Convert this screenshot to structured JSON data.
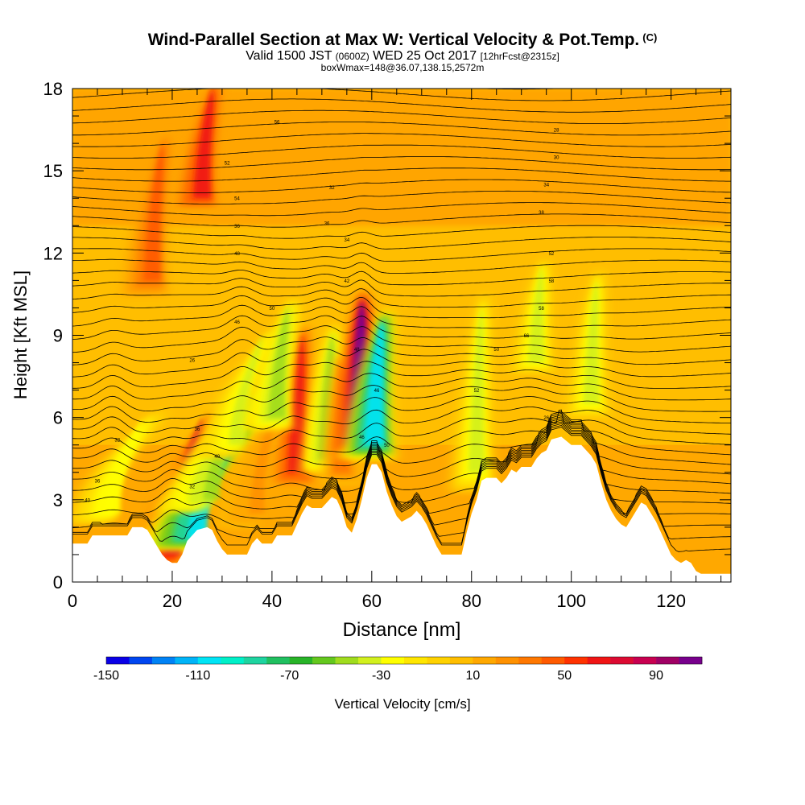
{
  "chart_data": {
    "type": "heatmap",
    "title": "Wind-Parallel Section at Max W: Vertical Velocity & Pot.Temp.",
    "title_suffix": "(C)",
    "subtitle_main": "Valid 1500 JST",
    "subtitle_utc": "(0600Z)",
    "subtitle_date": "WED 25 Oct 2017",
    "subtitle_fcst": "[12hrFcst@2315z]",
    "subtitle_box": "boxWmax=148@36.07,138.15,2572m",
    "xlabel": "Distance [nm]",
    "ylabel": "Height [Kft MSL]",
    "xlim": [
      0,
      132
    ],
    "ylim": [
      0,
      18
    ],
    "x_ticks": [
      "0",
      "20",
      "40",
      "60",
      "80",
      "100",
      "120"
    ],
    "y_ticks": [
      "0",
      "3",
      "6",
      "9",
      "12",
      "15",
      "18"
    ],
    "colorbar": {
      "label": "Vertical Velocity [cm/s]",
      "range": [
        -150,
        110
      ],
      "step": 10,
      "tick_labels": [
        "-150",
        "-110",
        "-70",
        "-30",
        "10",
        "50",
        "90"
      ],
      "colors": [
        "#0a00e6",
        "#0046f0",
        "#0082f5",
        "#00b4f8",
        "#00e4f5",
        "#00f0c8",
        "#1ed4a0",
        "#20c060",
        "#28b428",
        "#64c81e",
        "#a0dc1e",
        "#d2f01e",
        "#ffff00",
        "#ffe600",
        "#ffd200",
        "#ffbe00",
        "#ffa800",
        "#ff9100",
        "#ff7800",
        "#ff5a00",
        "#ff3200",
        "#f01414",
        "#dc0a32",
        "#c80050",
        "#a00064",
        "#78008c"
      ]
    },
    "theta_labels": [
      "40",
      "36",
      "32",
      "26",
      "32",
      "36",
      "40",
      "46",
      "56",
      "36",
      "52",
      "54",
      "48",
      "50",
      "36",
      "32",
      "34",
      "42",
      "48",
      "46",
      "46",
      "50",
      "52",
      "50",
      "66",
      "58",
      "58",
      "52",
      "38",
      "34",
      "30",
      "28",
      "26"
    ],
    "terrain": [
      [
        0,
        1.4
      ],
      [
        3,
        1.4
      ],
      [
        4,
        1.7
      ],
      [
        11,
        1.7
      ],
      [
        12,
        2.0
      ],
      [
        14,
        2.0
      ],
      [
        15,
        1.9
      ],
      [
        16,
        1.6
      ],
      [
        17,
        1.3
      ],
      [
        18,
        1.0
      ],
      [
        19,
        0.8
      ],
      [
        20,
        0.7
      ],
      [
        21,
        0.7
      ],
      [
        22,
        1.0
      ],
      [
        23,
        1.5
      ],
      [
        24,
        1.7
      ],
      [
        25,
        1.9
      ],
      [
        27,
        2.0
      ],
      [
        28,
        1.9
      ],
      [
        29,
        1.5
      ],
      [
        30,
        1.2
      ],
      [
        31,
        1.0
      ],
      [
        35,
        1.0
      ],
      [
        36,
        1.4
      ],
      [
        37,
        1.6
      ],
      [
        38,
        1.4
      ],
      [
        40,
        1.4
      ],
      [
        41,
        1.7
      ],
      [
        44,
        1.7
      ],
      [
        45,
        2.1
      ],
      [
        46,
        2.5
      ],
      [
        47,
        2.8
      ],
      [
        48,
        2.7
      ],
      [
        50,
        2.7
      ],
      [
        51,
        2.9
      ],
      [
        52,
        3.1
      ],
      [
        53,
        3.0
      ],
      [
        54,
        2.6
      ],
      [
        55,
        2.0
      ],
      [
        56,
        1.8
      ],
      [
        57,
        2.3
      ],
      [
        58,
        3.0
      ],
      [
        59,
        3.8
      ],
      [
        60,
        4.3
      ],
      [
        61,
        4.3
      ],
      [
        62,
        4.0
      ],
      [
        63,
        3.3
      ],
      [
        64,
        2.8
      ],
      [
        65,
        2.4
      ],
      [
        66,
        2.2
      ],
      [
        68,
        2.4
      ],
      [
        69,
        2.6
      ],
      [
        70,
        2.4
      ],
      [
        71,
        2.1
      ],
      [
        72,
        1.7
      ],
      [
        73,
        1.3
      ],
      [
        74,
        1.0
      ],
      [
        78,
        1.0
      ],
      [
        79,
        1.8
      ],
      [
        80,
        2.5
      ],
      [
        81,
        3.0
      ],
      [
        82,
        3.7
      ],
      [
        83,
        3.8
      ],
      [
        85,
        3.8
      ],
      [
        86,
        3.6
      ],
      [
        87,
        3.8
      ],
      [
        88,
        4.1
      ],
      [
        89,
        4.0
      ],
      [
        90,
        4.2
      ],
      [
        92,
        4.2
      ],
      [
        93,
        4.5
      ],
      [
        94,
        4.7
      ],
      [
        95,
        4.8
      ],
      [
        96,
        5.2
      ],
      [
        98,
        5.3
      ],
      [
        100,
        5.0
      ],
      [
        102,
        5.0
      ],
      [
        103,
        4.8
      ],
      [
        104,
        4.6
      ],
      [
        105,
        4.3
      ],
      [
        106,
        3.6
      ],
      [
        107,
        3.0
      ],
      [
        108,
        2.6
      ],
      [
        109,
        2.3
      ],
      [
        110,
        2.1
      ],
      [
        111,
        2.0
      ],
      [
        112,
        2.3
      ],
      [
        113,
        2.6
      ],
      [
        114,
        2.9
      ],
      [
        115,
        2.8
      ],
      [
        116,
        2.5
      ],
      [
        117,
        2.2
      ],
      [
        118,
        1.8
      ],
      [
        119,
        1.4
      ],
      [
        120,
        1.0
      ],
      [
        121,
        0.8
      ],
      [
        122,
        0.7
      ],
      [
        123,
        0.8
      ],
      [
        124,
        0.7
      ],
      [
        125,
        0.4
      ],
      [
        126,
        0.3
      ],
      [
        132,
        0.3
      ]
    ],
    "w_features": [
      {
        "x": 8,
        "xtop": 14,
        "bot": 2.5,
        "top": 6.0,
        "w": -30
      },
      {
        "x": 20,
        "xtop": 26,
        "bot": 1.0,
        "top": 6.0,
        "w": 70
      },
      {
        "x": 25,
        "xtop": 32,
        "bot": 1.6,
        "top": 5.5,
        "w": -110
      },
      {
        "x": 28,
        "xtop": 36,
        "bot": 3.0,
        "top": 7.0,
        "w": -50
      },
      {
        "x": 33,
        "xtop": 38,
        "bot": 5.0,
        "top": 9.0,
        "w": -40
      },
      {
        "x": 37,
        "xtop": 42,
        "bot": 2.5,
        "top": 7.0,
        "w": 20
      },
      {
        "x": 45,
        "xtop": 46,
        "bot": 4.0,
        "top": 9.0,
        "w": 60
      },
      {
        "x": 41,
        "xtop": 43,
        "bot": 6.0,
        "top": 10.0,
        "w": -50
      },
      {
        "x": 51,
        "xtop": 52,
        "bot": 4.5,
        "top": 9.0,
        "w": -50
      },
      {
        "x": 54,
        "xtop": 54,
        "bot": 4.0,
        "top": 8.0,
        "w": 30
      },
      {
        "x": 57.5,
        "xtop": 58,
        "bot": 5.2,
        "top": 10.2,
        "w": 110
      },
      {
        "x": 60.5,
        "xtop": 62,
        "bot": 5.0,
        "top": 9.5,
        "w": -110
      },
      {
        "x": 81,
        "xtop": 82,
        "bot": 4.0,
        "top": 10.0,
        "w": -40
      },
      {
        "x": 93,
        "xtop": 94,
        "bot": 8.0,
        "top": 11.5,
        "w": -40
      },
      {
        "x": 104,
        "xtop": 105,
        "bot": 6.5,
        "top": 11.0,
        "w": -40
      },
      {
        "x": 26,
        "xtop": 28,
        "bot": 14.0,
        "top": 18.0,
        "w": 60
      },
      {
        "x": 16,
        "xtop": 18,
        "bot": 11.0,
        "top": 16.0,
        "w": 40
      }
    ]
  }
}
